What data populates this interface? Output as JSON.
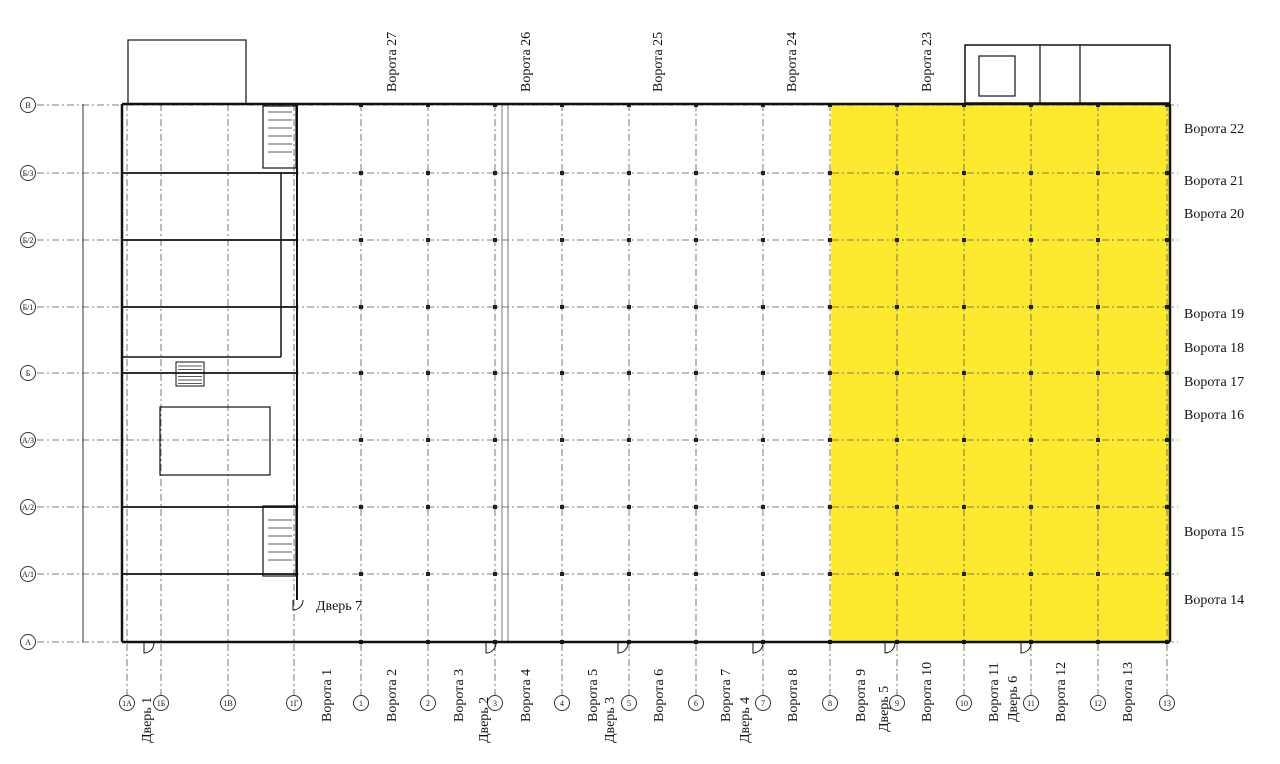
{
  "highlight_color": "#FCE930",
  "row_axes": [
    "В",
    "Б/3",
    "Б/2",
    "Б/1",
    "Б",
    "А/3",
    "А/2",
    "А/1",
    "А"
  ],
  "left_axes": [
    "1А",
    "1Б",
    "1В",
    "1Г"
  ],
  "column_axes": [
    "1",
    "2",
    "3",
    "4",
    "5",
    "6",
    "7",
    "8",
    "9",
    "10",
    "11",
    "12",
    "13"
  ],
  "top_gates": [
    "Ворота 27",
    "Ворота 26",
    "Ворота 25",
    "Ворота 24",
    "Ворота 23"
  ],
  "right_gates": [
    "Ворота 22",
    "Ворота 21",
    "Ворота 20",
    "Ворота 19",
    "Ворота 18",
    "Ворота 17",
    "Ворота 16",
    "Ворота 15",
    "Ворота 14"
  ],
  "bottom_gates": [
    "Ворота 1",
    "Ворота 2",
    "Ворота 3",
    "Ворота 4",
    "Ворота 5",
    "Ворота 6",
    "Ворота 7",
    "Ворота 8",
    "Ворота 9",
    "Ворота 10",
    "Ворота 11",
    "Ворота 12",
    "Ворота 13"
  ],
  "doors": [
    "Дверь 1",
    "Дверь 2",
    "Дверь 3",
    "Дверь 4",
    "Дверь 5",
    "Дверь 6",
    "Дверь 7"
  ]
}
